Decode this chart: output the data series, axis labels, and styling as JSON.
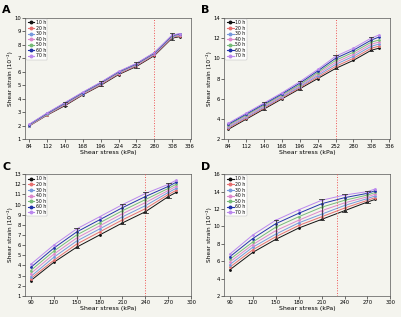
{
  "panels": [
    "A",
    "B",
    "C",
    "D"
  ],
  "hours": [
    10,
    20,
    30,
    40,
    50,
    60,
    70
  ],
  "line_colors": [
    "#111111",
    "#e87070",
    "#7799dd",
    "#dd88cc",
    "#77bb77",
    "#2233aa",
    "#bb88ee"
  ],
  "panel_A": {
    "x_ticks": [
      84,
      112,
      140,
      168,
      196,
      224,
      252,
      280,
      308,
      336
    ],
    "xlim": [
      78,
      338
    ],
    "ylim": [
      1,
      10
    ],
    "y_ticks": [
      1,
      2,
      3,
      4,
      5,
      6,
      7,
      8,
      9,
      10
    ],
    "vline": 280,
    "x_data": [
      84,
      112,
      140,
      168,
      196,
      224,
      252,
      280,
      308,
      320
    ],
    "curves": [
      [
        2.0,
        2.8,
        3.5,
        4.3,
        5.0,
        5.8,
        6.4,
        7.2,
        8.5,
        8.6
      ],
      [
        2.0,
        2.82,
        3.55,
        4.33,
        5.05,
        5.85,
        6.45,
        7.25,
        8.55,
        8.65
      ],
      [
        2.03,
        2.85,
        3.6,
        4.37,
        5.1,
        5.9,
        6.5,
        7.3,
        8.6,
        8.7
      ],
      [
        2.05,
        2.88,
        3.63,
        4.4,
        5.13,
        5.93,
        6.53,
        7.33,
        8.63,
        8.73
      ],
      [
        2.07,
        2.9,
        3.67,
        4.43,
        5.17,
        5.97,
        6.57,
        7.37,
        8.67,
        8.77
      ],
      [
        2.1,
        2.93,
        3.7,
        4.47,
        5.2,
        6.0,
        6.6,
        7.4,
        8.7,
        8.8
      ],
      [
        2.12,
        2.96,
        3.73,
        4.5,
        5.23,
        6.03,
        6.63,
        7.43,
        8.73,
        8.83
      ]
    ],
    "error_x": [
      140,
      196,
      252,
      308
    ],
    "error_half": [
      0.06,
      0.08,
      0.1,
      0.12
    ]
  },
  "panel_B": {
    "x_ticks": [
      84,
      112,
      140,
      168,
      196,
      224,
      252,
      280,
      308,
      336
    ],
    "xlim": [
      78,
      338
    ],
    "ylim": [
      2,
      14
    ],
    "y_ticks": [
      2,
      4,
      6,
      8,
      10,
      12,
      14
    ],
    "vline": 252,
    "x_data": [
      84,
      112,
      140,
      168,
      196,
      224,
      252,
      280,
      308,
      320
    ],
    "curves": [
      [
        3.0,
        4.0,
        5.0,
        6.0,
        7.0,
        8.0,
        9.0,
        9.8,
        10.8,
        11.0
      ],
      [
        3.1,
        4.1,
        5.1,
        6.1,
        7.1,
        8.15,
        9.2,
        10.0,
        11.0,
        11.2
      ],
      [
        3.2,
        4.2,
        5.2,
        6.2,
        7.2,
        8.3,
        9.4,
        10.2,
        11.2,
        11.4
      ],
      [
        3.3,
        4.3,
        5.3,
        6.3,
        7.3,
        8.45,
        9.6,
        10.4,
        11.4,
        11.6
      ],
      [
        3.4,
        4.4,
        5.4,
        6.4,
        7.4,
        8.6,
        9.8,
        10.6,
        11.6,
        11.8
      ],
      [
        3.5,
        4.5,
        5.5,
        6.5,
        7.55,
        8.75,
        10.0,
        10.8,
        11.8,
        12.1
      ],
      [
        3.6,
        4.6,
        5.6,
        6.6,
        7.7,
        8.9,
        10.2,
        11.0,
        12.0,
        12.3
      ]
    ],
    "error_x": [
      140,
      196,
      252,
      308
    ],
    "error_half": [
      0.05,
      0.08,
      0.1,
      0.12
    ]
  },
  "panel_C": {
    "x_ticks": [
      90,
      120,
      150,
      180,
      210,
      240,
      270,
      300
    ],
    "xlim": [
      83,
      298
    ],
    "ylim": [
      1,
      13
    ],
    "y_ticks": [
      1,
      2,
      3,
      4,
      5,
      6,
      7,
      8,
      9,
      10,
      11,
      12,
      13
    ],
    "vline": 240,
    "x_data": [
      90,
      120,
      150,
      180,
      210,
      240,
      270,
      280
    ],
    "curves": [
      [
        2.5,
        4.3,
        5.8,
        7.0,
        8.2,
        9.3,
        10.8,
        11.2
      ],
      [
        2.7,
        4.5,
        6.1,
        7.3,
        8.5,
        9.6,
        11.0,
        11.4
      ],
      [
        2.9,
        4.8,
        6.4,
        7.6,
        8.8,
        9.9,
        11.2,
        11.6
      ],
      [
        3.2,
        5.1,
        6.7,
        7.9,
        9.1,
        10.2,
        11.4,
        11.8
      ],
      [
        3.5,
        5.4,
        7.0,
        8.2,
        9.4,
        10.5,
        11.6,
        12.0
      ],
      [
        3.8,
        5.7,
        7.3,
        8.5,
        9.7,
        10.8,
        11.8,
        12.2
      ],
      [
        4.1,
        6.0,
        7.6,
        8.8,
        10.0,
        11.1,
        12.0,
        12.4
      ]
    ],
    "error_x": [
      150,
      210,
      240,
      270
    ],
    "error_half": [
      0.08,
      0.1,
      0.1,
      0.1
    ]
  },
  "panel_D": {
    "x_ticks": [
      90,
      120,
      150,
      180,
      210,
      240,
      270,
      300
    ],
    "xlim": [
      83,
      298
    ],
    "ylim": [
      2,
      16
    ],
    "y_ticks": [
      2,
      4,
      6,
      8,
      10,
      12,
      14,
      16
    ],
    "vline": 230,
    "x_data": [
      90,
      120,
      150,
      180,
      210,
      240,
      270,
      280
    ],
    "curves": [
      [
        5.0,
        7.0,
        8.5,
        9.8,
        10.8,
        11.8,
        12.8,
        13.1
      ],
      [
        5.3,
        7.3,
        8.8,
        10.1,
        11.1,
        12.1,
        13.0,
        13.3
      ],
      [
        5.6,
        7.6,
        9.1,
        10.4,
        11.4,
        12.4,
        13.2,
        13.5
      ],
      [
        5.9,
        7.9,
        9.5,
        10.7,
        11.8,
        12.7,
        13.4,
        13.7
      ],
      [
        6.2,
        8.2,
        9.9,
        11.1,
        12.2,
        13.0,
        13.6,
        13.9
      ],
      [
        6.5,
        8.6,
        10.3,
        11.5,
        12.6,
        13.3,
        13.8,
        14.1
      ],
      [
        6.8,
        9.0,
        10.7,
        11.9,
        13.0,
        13.6,
        14.0,
        14.3
      ]
    ],
    "error_x": [
      150,
      210,
      240,
      270
    ],
    "error_half": [
      0.08,
      0.1,
      0.1,
      0.1
    ]
  },
  "ylabel": "Shear strain (10⁻²)",
  "xlabel": "Shear stress (kPa)",
  "vline_color": "#ee5555",
  "bg_color": "#f4f4ee"
}
